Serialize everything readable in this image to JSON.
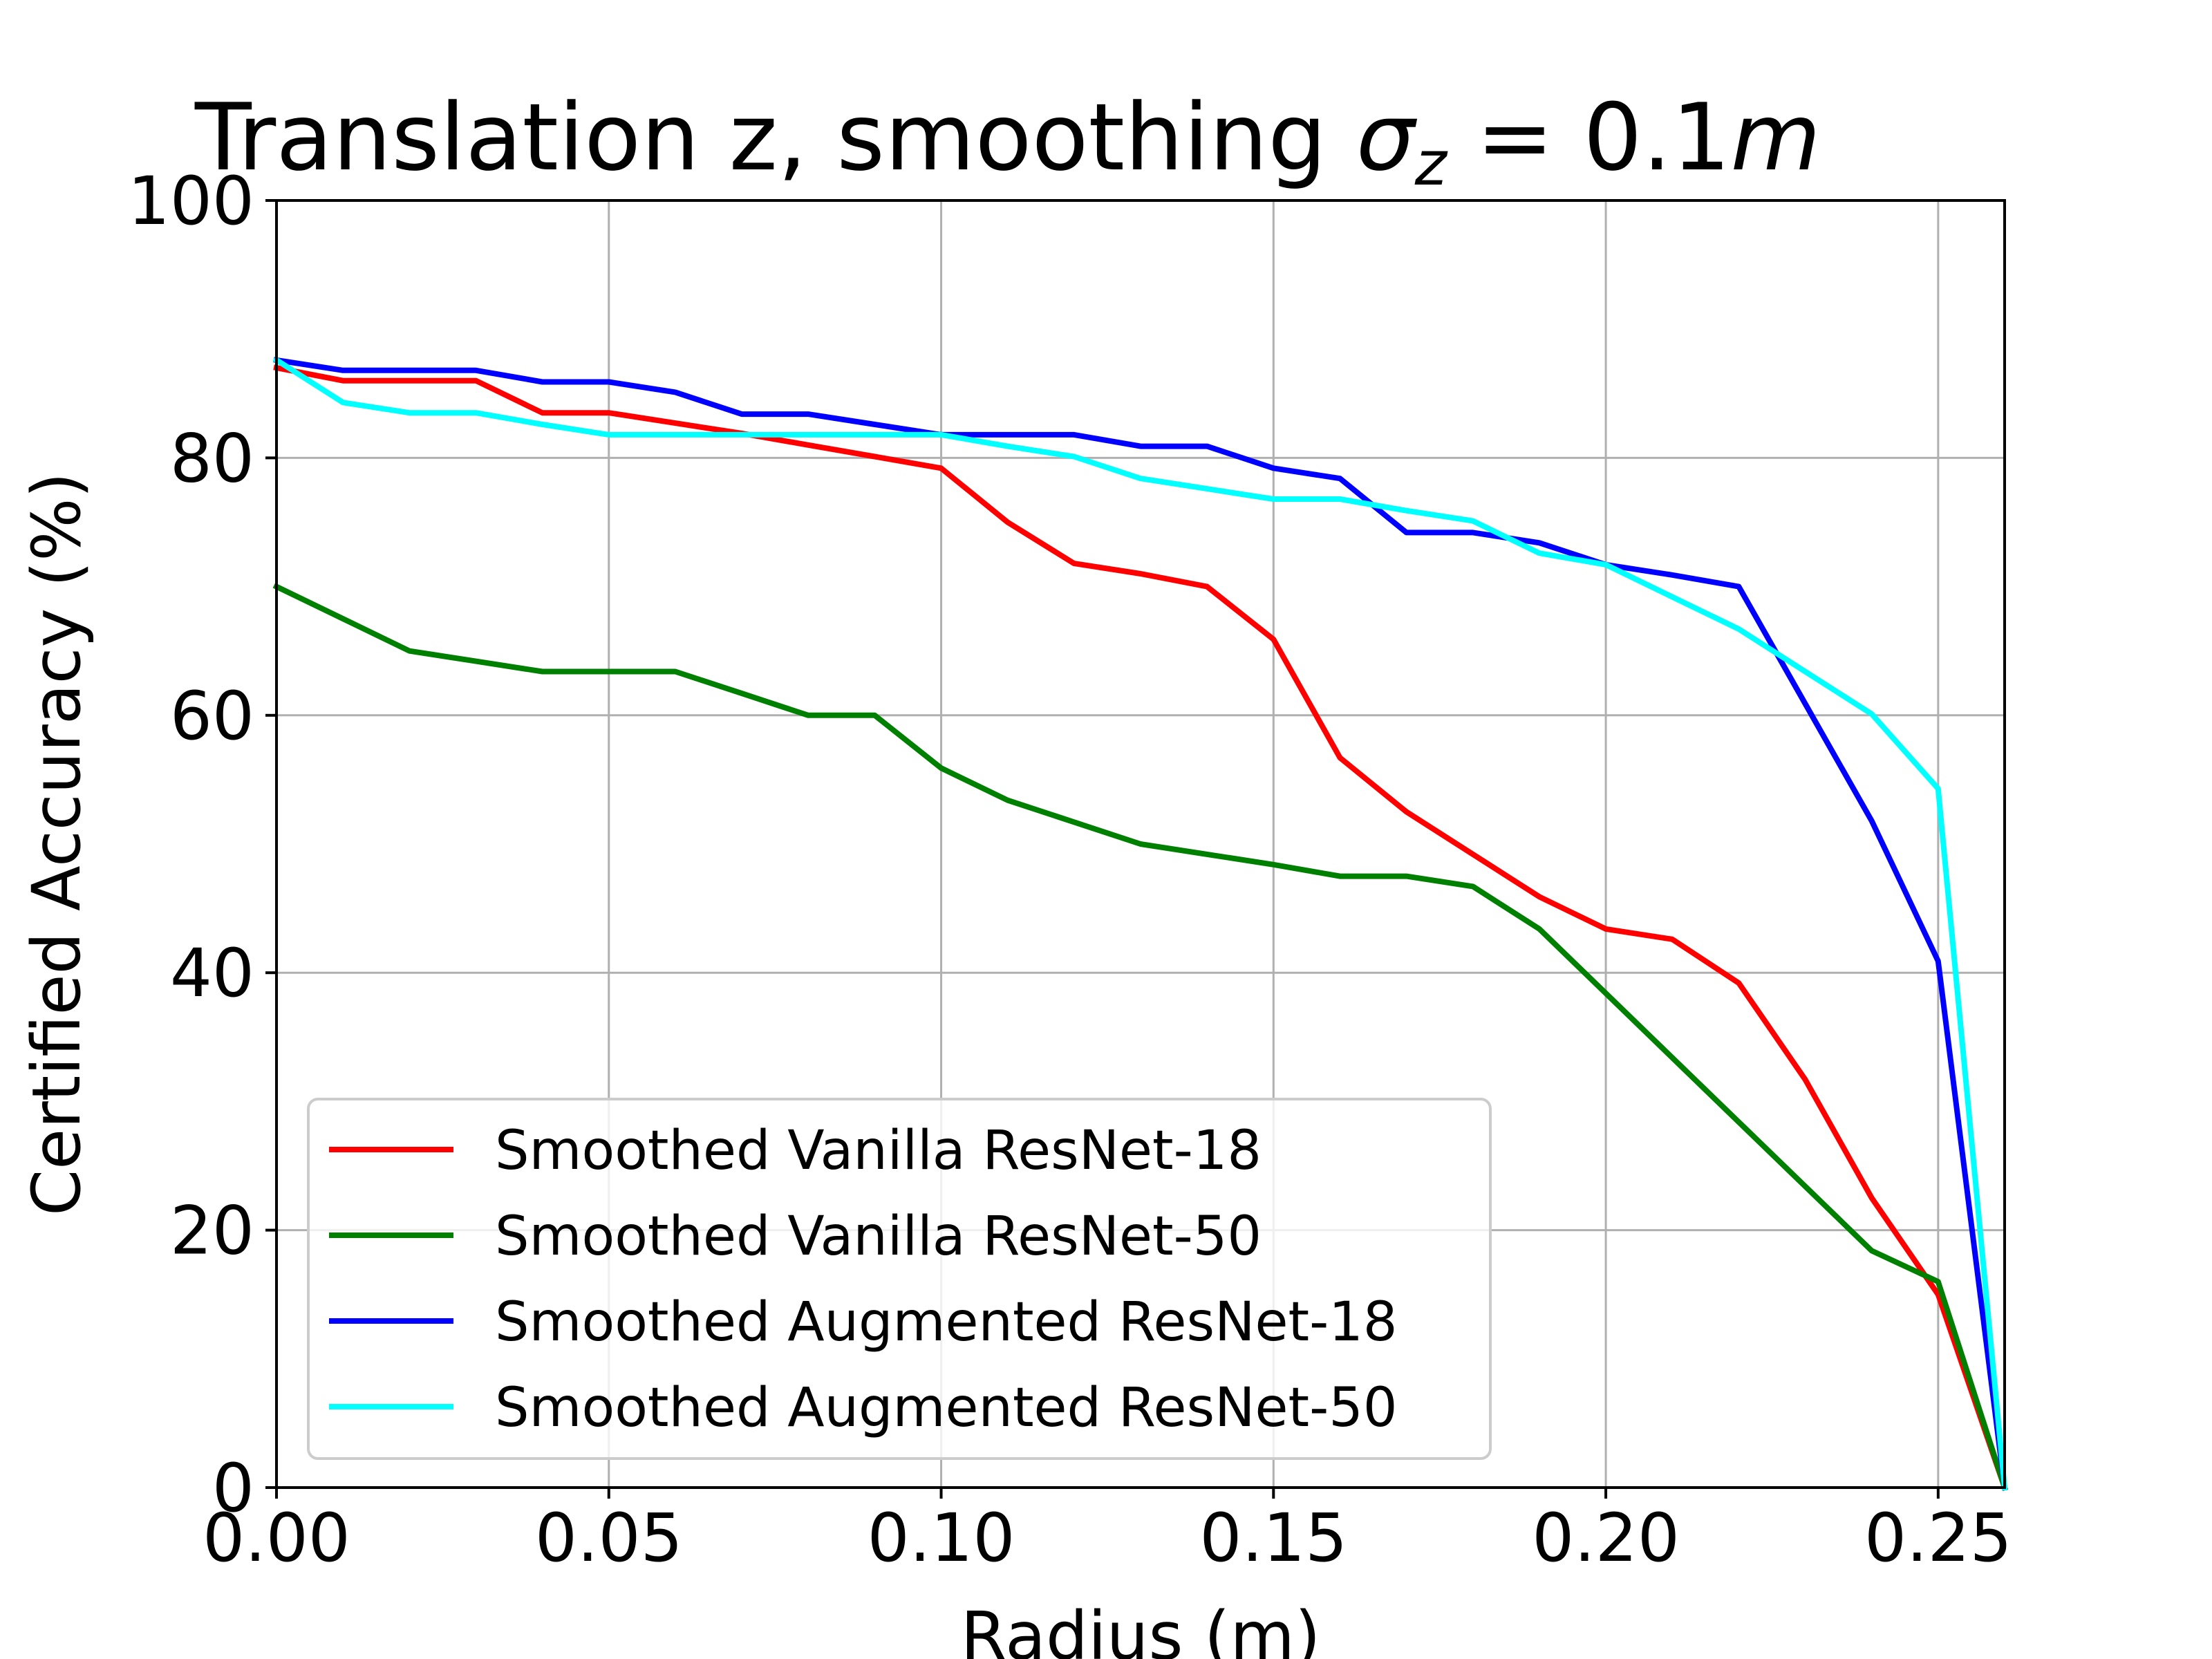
{
  "chart_data": {
    "type": "line",
    "title": {
      "text": "Translation z, smoothing ",
      "math_symbol": "σ",
      "math_subscript": "z",
      "math_rest": " = 0.1",
      "math_unit": "m"
    },
    "xlabel": "Radius (m)",
    "ylabel": "Certified Accuracy (%)",
    "xlim": [
      0.0,
      0.26
    ],
    "ylim": [
      0,
      100
    ],
    "xticks": [
      0.0,
      0.05,
      0.1,
      0.15,
      0.2,
      0.25
    ],
    "xtick_labels": [
      "0.00",
      "0.05",
      "0.10",
      "0.15",
      "0.20",
      "0.25"
    ],
    "yticks": [
      0,
      20,
      40,
      60,
      80,
      100
    ],
    "ytick_labels": [
      "0",
      "20",
      "40",
      "60",
      "80",
      "100"
    ],
    "grid": true,
    "legend_position": "lower-left",
    "x": [
      0.0,
      0.01,
      0.02,
      0.03,
      0.04,
      0.05,
      0.06,
      0.07,
      0.08,
      0.09,
      0.1,
      0.11,
      0.12,
      0.13,
      0.14,
      0.15,
      0.16,
      0.17,
      0.18,
      0.19,
      0.2,
      0.21,
      0.22,
      0.23,
      0.24,
      0.25,
      0.26
    ],
    "series": [
      {
        "name": "Smoothed Vanilla ResNet-18",
        "color": "#ff0000",
        "values": [
          87.0,
          86.0,
          86.0,
          86.0,
          83.5,
          83.5,
          82.7,
          81.9,
          81.0,
          80.1,
          79.2,
          75.0,
          71.8,
          71.0,
          70.0,
          65.9,
          56.7,
          52.5,
          49.2,
          45.9,
          43.4,
          42.6,
          39.2,
          31.7,
          22.5,
          15.0,
          0.0
        ]
      },
      {
        "name": "Smoothed Vanilla ResNet-50",
        "color": "#008000",
        "values": [
          70.0,
          67.5,
          65.0,
          64.2,
          63.4,
          63.4,
          63.4,
          61.7,
          60.0,
          60.0,
          55.9,
          53.4,
          51.7,
          50.0,
          49.2,
          48.4,
          47.5,
          47.5,
          46.7,
          43.4,
          38.4,
          33.4,
          28.4,
          23.4,
          18.4,
          16.0,
          0.0
        ]
      },
      {
        "name": "Smoothed Augmented ResNet-18",
        "color": "#0000ff",
        "values": [
          87.6,
          86.8,
          86.8,
          86.8,
          85.9,
          85.9,
          85.1,
          83.4,
          83.4,
          82.6,
          81.8,
          81.8,
          81.8,
          80.9,
          80.9,
          79.2,
          78.4,
          74.2,
          74.2,
          73.4,
          71.7,
          70.9,
          70.0,
          60.9,
          51.8,
          40.9,
          0.0
        ]
      },
      {
        "name": "Smoothed Augmented ResNet-50",
        "color": "#00ffff",
        "values": [
          87.6,
          84.3,
          83.5,
          83.5,
          82.6,
          81.8,
          81.8,
          81.8,
          81.8,
          81.8,
          81.8,
          80.9,
          80.1,
          78.4,
          77.6,
          76.8,
          76.8,
          75.9,
          75.1,
          72.6,
          71.7,
          69.2,
          66.7,
          63.4,
          60.1,
          54.3,
          0.0
        ]
      }
    ]
  }
}
